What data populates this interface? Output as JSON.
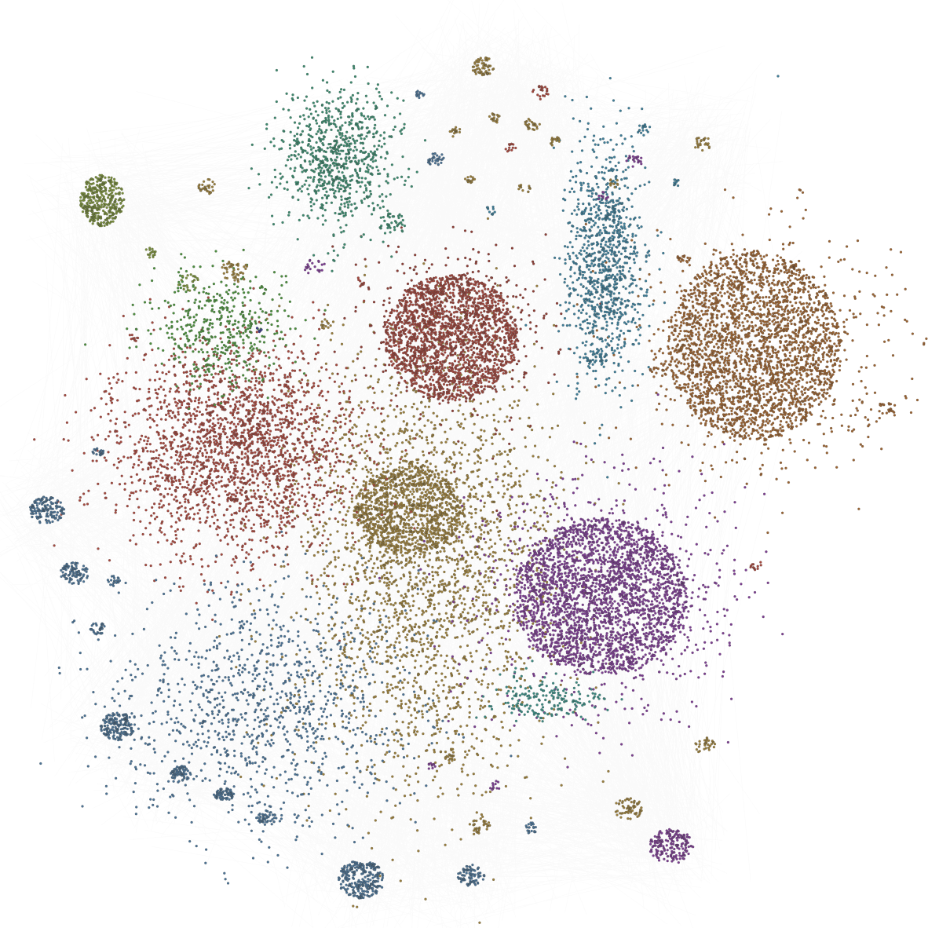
{
  "graph": {
    "kind": "network-visualization",
    "background": "#ffffff",
    "edge_color": "#9a9a9a",
    "node_outline": "#3a3a3a",
    "palette": {
      "olive_gold": "#9a7f3e",
      "brown": "#9b6433",
      "brick_red": "#a5493f",
      "dark_red": "#8e3f37",
      "purple": "#7d3f92",
      "steel_blue": "#4c7395",
      "teal_blue": "#3f7e98",
      "sea_green": "#3e8a6f",
      "teal": "#3c8a82",
      "olive_green": "#7a8f3c",
      "green": "#4d8f3f",
      "indigo": "#3f3f8f"
    }
  }
}
